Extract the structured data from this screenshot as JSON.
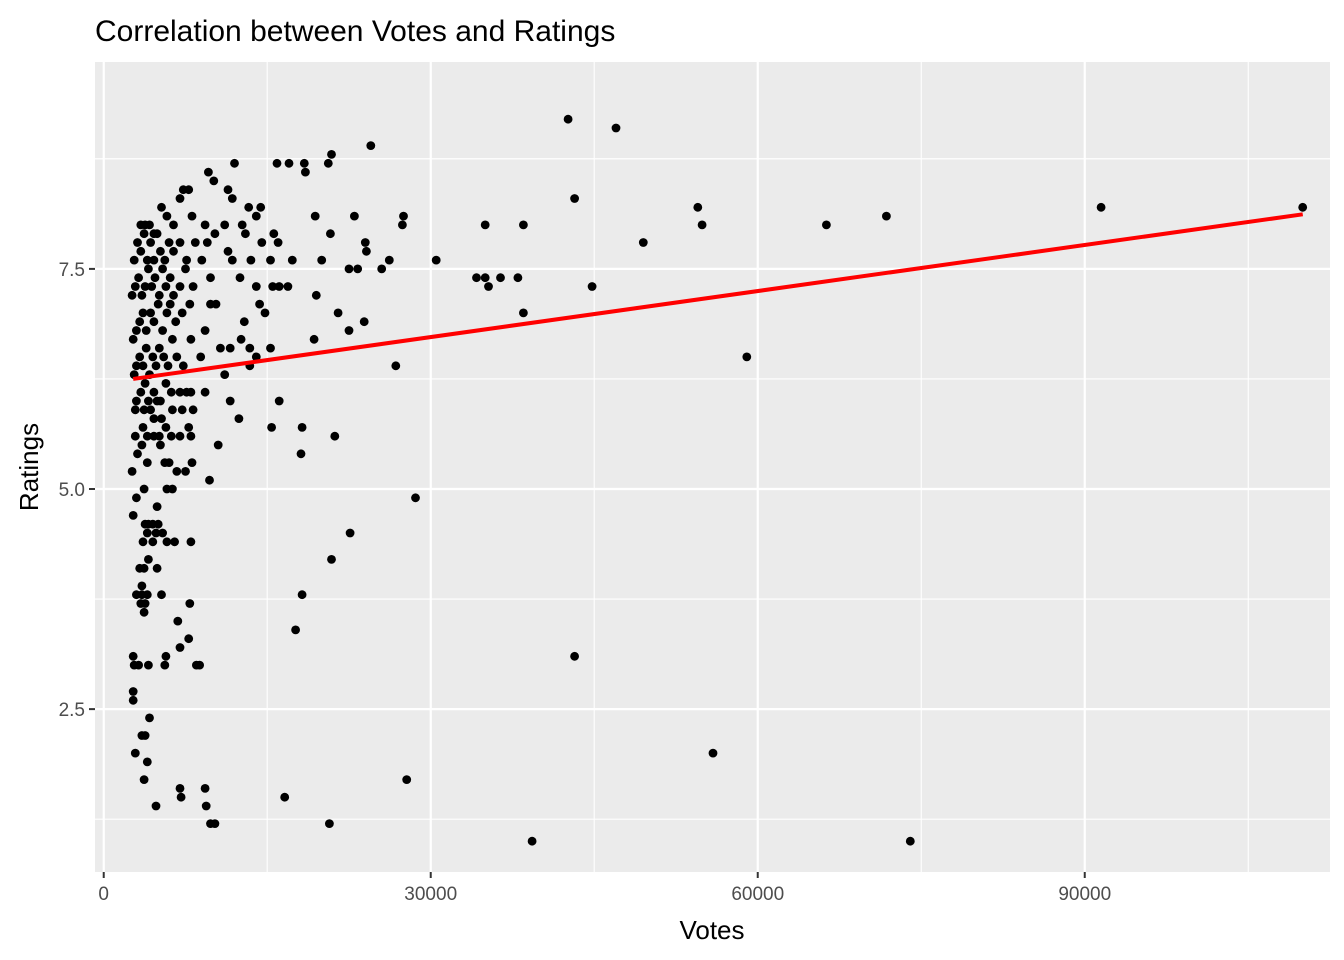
{
  "chart_data": {
    "type": "scatter",
    "title": "Correlation between Votes and Ratings",
    "xlabel": "Votes",
    "ylabel": "Ratings",
    "xlim": [
      -800,
      112500
    ],
    "ylim": [
      0.65,
      9.85
    ],
    "x_ticks": [
      0,
      30000,
      60000,
      90000
    ],
    "x_tick_labels": [
      "0",
      "30000",
      "60000",
      "90000"
    ],
    "y_ticks": [
      2.5,
      5.0,
      7.5
    ],
    "y_tick_labels": [
      "2.5",
      "5.0",
      "7.5"
    ],
    "grid": true,
    "colors": {
      "panel_bg": "#EBEBEB",
      "grid": "#FFFFFF",
      "points": "#000000",
      "trend": "#FF0000",
      "tick_text": "#4D4D4D"
    },
    "trend_line": {
      "type": "linear",
      "x": [
        2700,
        110000
      ],
      "y": [
        6.25,
        8.12
      ]
    },
    "points": [
      [
        42600,
        9.2
      ],
      [
        47000,
        9.1
      ],
      [
        24500,
        8.9
      ],
      [
        20900,
        8.8
      ],
      [
        20600,
        8.7
      ],
      [
        15900,
        8.7
      ],
      [
        17000,
        8.7
      ],
      [
        18400,
        8.7
      ],
      [
        18500,
        8.6
      ],
      [
        12000,
        8.7
      ],
      [
        43200,
        8.3
      ],
      [
        54500,
        8.2
      ],
      [
        91500,
        8.2
      ],
      [
        110000,
        8.2
      ],
      [
        71800,
        8.1
      ],
      [
        66300,
        8.0
      ],
      [
        54900,
        8.0
      ],
      [
        38500,
        8.0
      ],
      [
        35000,
        8.0
      ],
      [
        27500,
        8.1
      ],
      [
        27400,
        8.0
      ],
      [
        23000,
        8.1
      ],
      [
        19400,
        8.1
      ],
      [
        49500,
        7.8
      ],
      [
        30500,
        7.6
      ],
      [
        26200,
        7.6
      ],
      [
        25500,
        7.5
      ],
      [
        22500,
        7.5
      ],
      [
        23300,
        7.5
      ],
      [
        24100,
        7.7
      ],
      [
        24000,
        7.8
      ],
      [
        20800,
        7.9
      ],
      [
        16000,
        7.8
      ],
      [
        17300,
        7.6
      ],
      [
        16900,
        7.3
      ],
      [
        15500,
        7.3
      ],
      [
        16100,
        7.3
      ],
      [
        15300,
        7.6
      ],
      [
        15600,
        7.9
      ],
      [
        19500,
        7.2
      ],
      [
        20000,
        7.6
      ],
      [
        34200,
        7.4
      ],
      [
        35000,
        7.4
      ],
      [
        35300,
        7.3
      ],
      [
        36400,
        7.4
      ],
      [
        38000,
        7.4
      ],
      [
        44800,
        7.3
      ],
      [
        38500,
        7.0
      ],
      [
        21500,
        7.0
      ],
      [
        22500,
        6.8
      ],
      [
        23900,
        6.9
      ],
      [
        19300,
        6.7
      ],
      [
        26800,
        6.4
      ],
      [
        59000,
        6.5
      ],
      [
        15300,
        6.6
      ],
      [
        16100,
        6.0
      ],
      [
        18200,
        5.7
      ],
      [
        15400,
        5.7
      ],
      [
        18100,
        5.4
      ],
      [
        21200,
        5.6
      ],
      [
        28600,
        4.9
      ],
      [
        22600,
        4.5
      ],
      [
        20900,
        4.2
      ],
      [
        18200,
        3.8
      ],
      [
        17600,
        3.4
      ],
      [
        43200,
        3.1
      ],
      [
        55900,
        2.0
      ],
      [
        27800,
        1.7
      ],
      [
        16600,
        1.5
      ],
      [
        20700,
        1.2
      ],
      [
        39300,
        1.0
      ],
      [
        74000,
        1.0
      ],
      [
        9800,
        1.2
      ],
      [
        10200,
        1.2
      ],
      [
        9400,
        1.4
      ],
      [
        9300,
        1.6
      ],
      [
        7000,
        1.6
      ],
      [
        7100,
        1.5
      ],
      [
        4800,
        1.4
      ],
      [
        3700,
        1.7
      ],
      [
        4000,
        1.9
      ],
      [
        3800,
        2.2
      ],
      [
        3500,
        2.2
      ],
      [
        2900,
        2.0
      ],
      [
        4200,
        2.4
      ],
      [
        2700,
        2.7
      ],
      [
        2700,
        2.6
      ],
      [
        2700,
        3.1
      ],
      [
        2800,
        3.0
      ],
      [
        3200,
        3.0
      ],
      [
        4100,
        3.0
      ],
      [
        5600,
        3.0
      ],
      [
        5700,
        3.1
      ],
      [
        7000,
        3.2
      ],
      [
        7800,
        3.3
      ],
      [
        8500,
        3.0
      ],
      [
        8800,
        3.0
      ],
      [
        6800,
        3.5
      ],
      [
        7900,
        3.7
      ],
      [
        3000,
        3.8
      ],
      [
        3500,
        3.8
      ],
      [
        3800,
        3.7
      ],
      [
        3400,
        3.7
      ],
      [
        3700,
        3.6
      ],
      [
        4000,
        3.8
      ],
      [
        3500,
        3.9
      ],
      [
        5300,
        3.8
      ],
      [
        3300,
        4.1
      ],
      [
        3700,
        4.1
      ],
      [
        4900,
        4.1
      ],
      [
        4100,
        4.2
      ],
      [
        3600,
        4.4
      ],
      [
        4500,
        4.4
      ],
      [
        5800,
        4.4
      ],
      [
        6500,
        4.4
      ],
      [
        8000,
        4.4
      ],
      [
        3800,
        4.6
      ],
      [
        4100,
        4.6
      ],
      [
        4500,
        4.6
      ],
      [
        5000,
        4.6
      ],
      [
        4000,
        4.5
      ],
      [
        4800,
        4.5
      ],
      [
        5400,
        4.5
      ],
      [
        4900,
        4.8
      ],
      [
        3700,
        5.0
      ],
      [
        3000,
        4.9
      ],
      [
        2700,
        4.7
      ],
      [
        2600,
        5.2
      ],
      [
        3100,
        5.4
      ],
      [
        3500,
        5.5
      ],
      [
        4000,
        5.3
      ],
      [
        4600,
        5.6
      ],
      [
        5200,
        5.5
      ],
      [
        5600,
        5.3
      ],
      [
        6000,
        5.3
      ],
      [
        6700,
        5.2
      ],
      [
        7500,
        5.2
      ],
      [
        8100,
        5.3
      ],
      [
        5800,
        5.0
      ],
      [
        6300,
        5.0
      ],
      [
        9700,
        5.1
      ],
      [
        10500,
        5.5
      ],
      [
        2900,
        5.6
      ],
      [
        3600,
        5.7
      ],
      [
        4000,
        5.6
      ],
      [
        4600,
        5.8
      ],
      [
        5100,
        5.6
      ],
      [
        5700,
        5.7
      ],
      [
        6200,
        5.6
      ],
      [
        7000,
        5.6
      ],
      [
        7800,
        5.7
      ],
      [
        8000,
        5.6
      ],
      [
        2900,
        5.9
      ],
      [
        3700,
        5.9
      ],
      [
        4300,
        5.9
      ],
      [
        4900,
        6.0
      ],
      [
        5300,
        5.8
      ],
      [
        6300,
        5.9
      ],
      [
        7200,
        5.9
      ],
      [
        8200,
        5.9
      ],
      [
        12400,
        5.8
      ],
      [
        11600,
        6.0
      ],
      [
        3000,
        6.0
      ],
      [
        3400,
        6.1
      ],
      [
        3800,
        6.2
      ],
      [
        4100,
        6.0
      ],
      [
        4600,
        6.1
      ],
      [
        5200,
        6.0
      ],
      [
        5700,
        6.2
      ],
      [
        6200,
        6.1
      ],
      [
        7000,
        6.1
      ],
      [
        7600,
        6.1
      ],
      [
        8000,
        6.1
      ],
      [
        9300,
        6.1
      ],
      [
        11100,
        6.3
      ],
      [
        2800,
        6.3
      ],
      [
        3000,
        6.4
      ],
      [
        3300,
        6.5
      ],
      [
        3600,
        6.4
      ],
      [
        3900,
        6.6
      ],
      [
        4200,
        6.3
      ],
      [
        4500,
        6.5
      ],
      [
        4800,
        6.4
      ],
      [
        5100,
        6.6
      ],
      [
        5500,
        6.5
      ],
      [
        5900,
        6.4
      ],
      [
        6300,
        6.7
      ],
      [
        6700,
        6.5
      ],
      [
        7300,
        6.4
      ],
      [
        8000,
        6.7
      ],
      [
        8900,
        6.5
      ],
      [
        9300,
        6.8
      ],
      [
        10700,
        6.6
      ],
      [
        11600,
        6.6
      ],
      [
        12600,
        6.7
      ],
      [
        13400,
        6.6
      ],
      [
        13400,
        6.4
      ],
      [
        14000,
        6.5
      ],
      [
        2700,
        6.7
      ],
      [
        3000,
        6.8
      ],
      [
        3300,
        6.9
      ],
      [
        3600,
        7.0
      ],
      [
        3900,
        6.8
      ],
      [
        4300,
        7.0
      ],
      [
        4600,
        6.9
      ],
      [
        5000,
        7.1
      ],
      [
        5400,
        6.8
      ],
      [
        5800,
        7.0
      ],
      [
        6100,
        7.1
      ],
      [
        6600,
        6.9
      ],
      [
        7200,
        7.0
      ],
      [
        7900,
        7.1
      ],
      [
        9800,
        7.1
      ],
      [
        10300,
        7.1
      ],
      [
        12900,
        6.9
      ],
      [
        14300,
        7.1
      ],
      [
        14800,
        7.0
      ],
      [
        2600,
        7.2
      ],
      [
        2900,
        7.3
      ],
      [
        3200,
        7.4
      ],
      [
        3500,
        7.2
      ],
      [
        3800,
        7.3
      ],
      [
        4100,
        7.5
      ],
      [
        4400,
        7.3
      ],
      [
        4700,
        7.4
      ],
      [
        5100,
        7.2
      ],
      [
        5400,
        7.5
      ],
      [
        5700,
        7.3
      ],
      [
        6100,
        7.4
      ],
      [
        6400,
        7.2
      ],
      [
        7000,
        7.3
      ],
      [
        7500,
        7.5
      ],
      [
        8200,
        7.3
      ],
      [
        9000,
        7.6
      ],
      [
        9800,
        7.4
      ],
      [
        11800,
        7.6
      ],
      [
        12500,
        7.4
      ],
      [
        13500,
        7.6
      ],
      [
        14000,
        7.3
      ],
      [
        2800,
        7.6
      ],
      [
        3100,
        7.8
      ],
      [
        3400,
        7.7
      ],
      [
        3700,
        7.9
      ],
      [
        4000,
        7.6
      ],
      [
        4300,
        7.8
      ],
      [
        4600,
        7.6
      ],
      [
        4900,
        7.9
      ],
      [
        5200,
        7.7
      ],
      [
        5600,
        7.6
      ],
      [
        6000,
        7.8
      ],
      [
        6400,
        7.7
      ],
      [
        7000,
        7.8
      ],
      [
        7600,
        7.6
      ],
      [
        8400,
        7.8
      ],
      [
        9500,
        7.8
      ],
      [
        10200,
        7.9
      ],
      [
        11400,
        7.7
      ],
      [
        13000,
        7.9
      ],
      [
        14500,
        7.8
      ],
      [
        3400,
        8.0
      ],
      [
        3800,
        8.0
      ],
      [
        4200,
        8.0
      ],
      [
        4600,
        7.9
      ],
      [
        5300,
        8.2
      ],
      [
        5800,
        8.1
      ],
      [
        6400,
        8.0
      ],
      [
        7000,
        8.3
      ],
      [
        7300,
        8.4
      ],
      [
        7800,
        8.4
      ],
      [
        8100,
        8.1
      ],
      [
        9300,
        8.0
      ],
      [
        10100,
        8.5
      ],
      [
        11400,
        8.4
      ],
      [
        11800,
        8.3
      ],
      [
        12700,
        8.0
      ],
      [
        13300,
        8.2
      ],
      [
        14000,
        8.1
      ],
      [
        14400,
        8.2
      ],
      [
        11100,
        8.0
      ],
      [
        9600,
        8.6
      ]
    ]
  }
}
